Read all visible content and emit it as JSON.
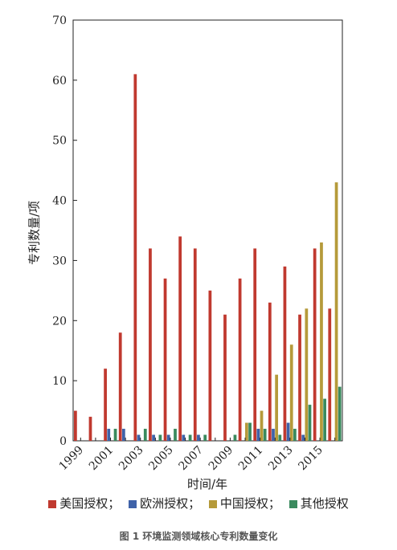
{
  "chart_data": {
    "type": "bar",
    "categories": [
      "1999",
      "2000",
      "2001",
      "2002",
      "2003",
      "2004",
      "2005",
      "2006",
      "2007",
      "2008",
      "2009",
      "2010",
      "2011",
      "2012",
      "2013",
      "2014",
      "2015",
      "2016"
    ],
    "x_tick_labels": [
      "1999",
      "2001",
      "2003",
      "2005",
      "2007",
      "2009",
      "2011",
      "2013",
      "2015"
    ],
    "series": [
      {
        "name": "美国授权",
        "color": "#c0392f",
        "values": [
          5,
          4,
          12,
          18,
          61,
          32,
          27,
          34,
          32,
          25,
          21,
          27,
          32,
          23,
          29,
          21,
          32,
          22
        ]
      },
      {
        "name": "欧洲授权",
        "color": "#3f62a8",
        "values": [
          0,
          0,
          2,
          2,
          1,
          1,
          1,
          1,
          1,
          0,
          0,
          0,
          2,
          2,
          3,
          1,
          0,
          0
        ]
      },
      {
        "name": "中国授权",
        "color": "#b59a3a",
        "values": [
          0,
          0,
          0,
          0,
          0,
          0,
          0,
          0,
          0,
          0,
          0,
          3,
          5,
          11,
          16,
          22,
          33,
          43
        ]
      },
      {
        "name": "其他授权",
        "color": "#3a8a5e",
        "values": [
          0,
          0,
          2,
          0,
          2,
          1,
          2,
          1,
          1,
          0,
          1,
          3,
          2,
          1,
          2,
          6,
          7,
          9
        ]
      }
    ],
    "ylim": [
      0,
      70
    ],
    "yticks": [
      0,
      10,
      20,
      30,
      40,
      50,
      60,
      70
    ],
    "xlabel": "时间/年",
    "ylabel": "专利数量/项",
    "legend_position": "bottom",
    "grid": false
  },
  "legend_separator": "；",
  "caption": "图 1 环境监测领域核心专利数量变化"
}
